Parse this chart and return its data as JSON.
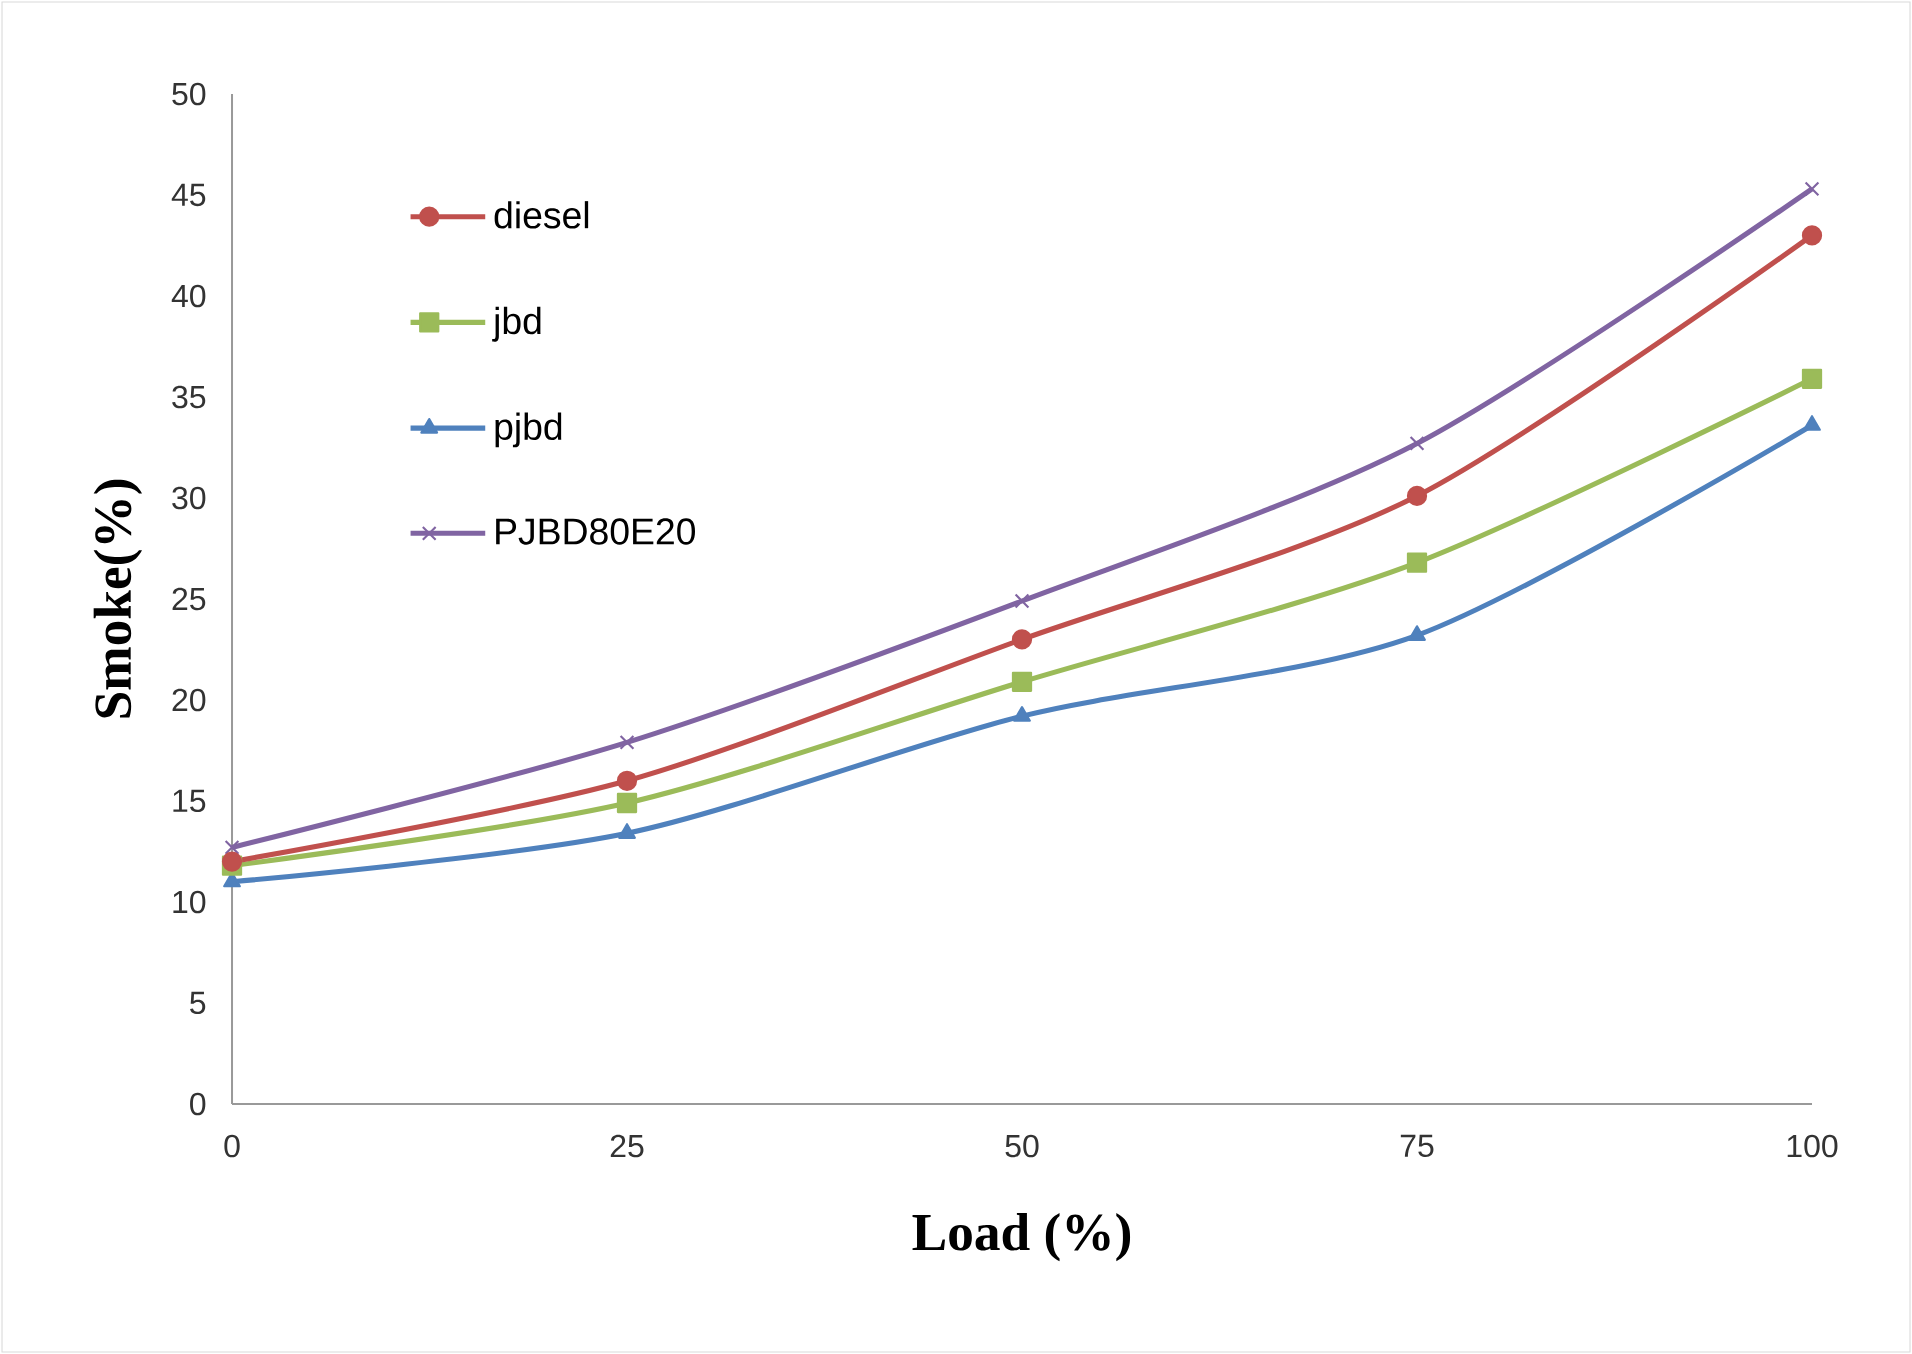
{
  "chart_data": {
    "type": "line",
    "xlabel": "Load (%)",
    "ylabel": "Smoke(%)",
    "x": [
      0,
      25,
      50,
      75,
      100
    ],
    "xlim": [
      0,
      100
    ],
    "xticks": [
      0,
      25,
      50,
      75,
      100
    ],
    "ylim": [
      0,
      50
    ],
    "yticks": [
      0,
      5,
      10,
      15,
      20,
      25,
      30,
      35,
      40,
      45,
      50
    ],
    "grid": false,
    "legend": "top left",
    "line_style": "solid",
    "series": [
      {
        "name": "diesel",
        "color": "#c0504d",
        "marker": "circle",
        "values": [
          12.0,
          16.0,
          23.0,
          30.1,
          43.0
        ]
      },
      {
        "name": "jbd",
        "color": "#9bbb59",
        "marker": "square",
        "values": [
          11.8,
          14.9,
          20.9,
          26.8,
          35.9
        ]
      },
      {
        "name": "pjbd",
        "color": "#4f81bd",
        "marker": "triangle",
        "values": [
          11.0,
          13.4,
          19.2,
          23.2,
          33.6
        ]
      },
      {
        "name": "PJBD80E20",
        "color": "#8064a2",
        "marker": "cross",
        "values": [
          12.7,
          17.9,
          24.9,
          32.7,
          45.3
        ]
      }
    ]
  }
}
